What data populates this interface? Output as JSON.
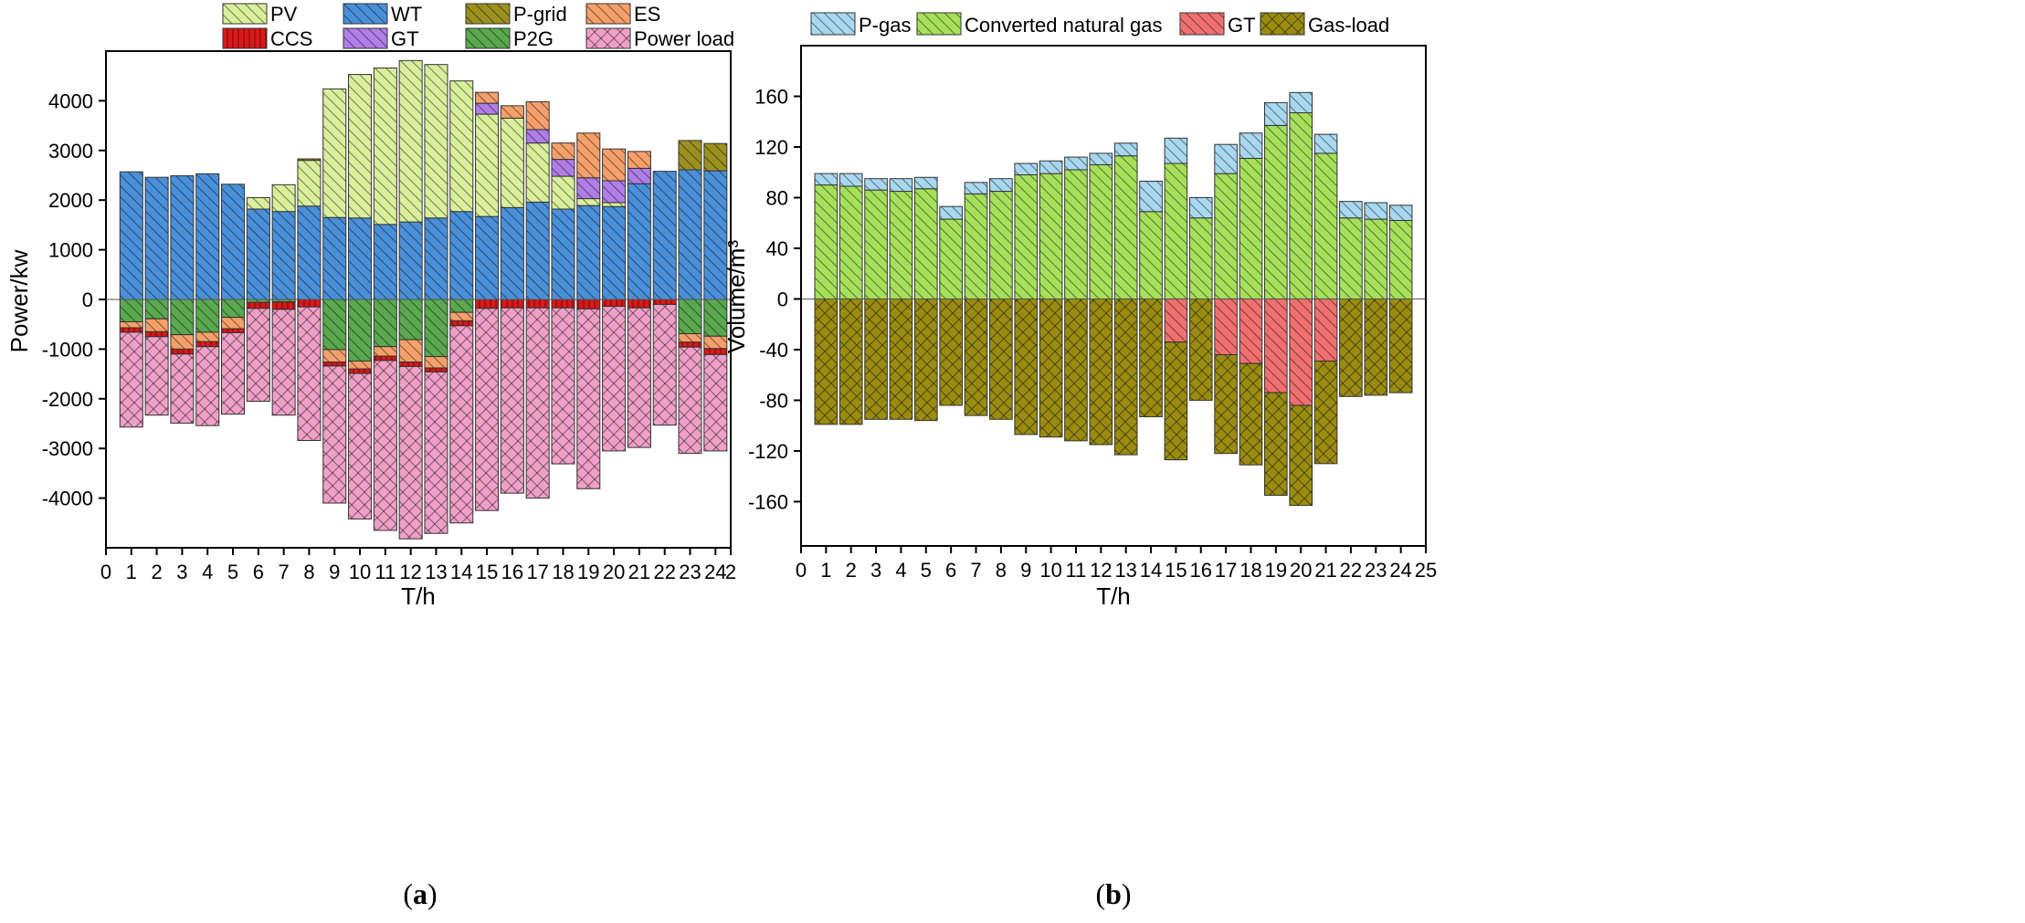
{
  "chart_data": [
    {
      "type": "bar",
      "stacked": true,
      "xlabel": "T/h",
      "ylabel": "Power/kw",
      "ylim": [
        -5000,
        5000
      ],
      "xlim": [
        0,
        24.6
      ],
      "xticks": [
        "0",
        "1",
        "2",
        "3",
        "4",
        "5",
        "6",
        "7",
        "8",
        "9",
        "10",
        "11",
        "12",
        "13",
        "14",
        "15",
        "16",
        "17",
        "18",
        "19",
        "20",
        "21",
        "22",
        "23",
        "24",
        "2"
      ],
      "yticks": [
        "-4000",
        "-3000",
        "-2000",
        "-1000",
        "0",
        "1000",
        "2000",
        "3000",
        "4000"
      ],
      "grid": false,
      "legend_placement": "top",
      "panel_label": "a",
      "categories": [
        1,
        2,
        3,
        4,
        5,
        6,
        7,
        8,
        9,
        10,
        11,
        12,
        13,
        14,
        15,
        16,
        17,
        18,
        19,
        20,
        21,
        22,
        23,
        24
      ],
      "positive_series": [
        {
          "name": "WT",
          "color": "#4a90d9",
          "values": [
            2570,
            2460,
            2490,
            2530,
            2320,
            1820,
            1770,
            1880,
            1650,
            1640,
            1510,
            1560,
            1640,
            1770,
            1670,
            1850,
            1960,
            1820,
            1890,
            1870,
            2330,
            2580,
            2610,
            2590
          ]
        },
        {
          "name": "PV",
          "color": "#d9ef9b",
          "values": [
            0,
            0,
            0,
            0,
            0,
            230,
            540,
            920,
            2590,
            2890,
            3150,
            3250,
            3090,
            2630,
            2060,
            1800,
            1190,
            660,
            140,
            80,
            0,
            0,
            0,
            0
          ]
        },
        {
          "name": "GT",
          "color": "#b07ee8",
          "values": [
            0,
            0,
            0,
            0,
            0,
            0,
            0,
            0,
            0,
            0,
            0,
            0,
            0,
            0,
            220,
            0,
            270,
            340,
            420,
            440,
            310,
            0,
            0,
            0
          ]
        },
        {
          "name": "ES",
          "color": "#f5a06a",
          "values": [
            0,
            0,
            0,
            0,
            0,
            0,
            0,
            0,
            0,
            0,
            0,
            0,
            0,
            0,
            220,
            250,
            560,
            330,
            900,
            640,
            340,
            0,
            0,
            0
          ]
        },
        {
          "name": "P-grid",
          "color": "#9c9020",
          "values": [
            0,
            0,
            0,
            0,
            0,
            0,
            0,
            30,
            0,
            0,
            0,
            0,
            0,
            0,
            0,
            0,
            0,
            0,
            0,
            0,
            0,
            0,
            590,
            550
          ]
        }
      ],
      "negative_series": [
        {
          "name": "P2G",
          "color": "#5aa84f",
          "values": [
            -450,
            -390,
            -710,
            -660,
            -360,
            -60,
            -50,
            0,
            -1010,
            -1240,
            -950,
            -810,
            -1150,
            -260,
            0,
            0,
            0,
            0,
            0,
            0,
            0,
            0,
            -690,
            -740
          ]
        },
        {
          "name": "ES",
          "color": "#f5a06a",
          "values": [
            -120,
            -260,
            -290,
            -190,
            -230,
            0,
            0,
            0,
            -250,
            -160,
            -190,
            -450,
            -230,
            -170,
            0,
            0,
            0,
            0,
            0,
            0,
            0,
            0,
            -170,
            -250
          ]
        },
        {
          "name": "CCS",
          "color": "#d91818",
          "values": [
            -90,
            -100,
            -100,
            -100,
            -80,
            -120,
            -150,
            -150,
            -80,
            -90,
            -90,
            -90,
            -80,
            -100,
            -180,
            -170,
            -170,
            -170,
            -190,
            -140,
            -170,
            -100,
            -100,
            -120
          ]
        },
        {
          "name": "Power load",
          "color": "#f0a0c8",
          "values": [
            -1910,
            -1580,
            -1390,
            -1590,
            -1640,
            -1870,
            -2130,
            -2690,
            -2760,
            -2930,
            -3420,
            -3470,
            -3250,
            -3970,
            -4070,
            -3730,
            -3830,
            -3140,
            -3620,
            -2910,
            -2810,
            -2430,
            -2140,
            -1940
          ]
        }
      ],
      "legend": [
        "PV",
        "WT",
        "P-grid",
        "ES",
        "CCS",
        "GT",
        "P2G",
        "Power load"
      ]
    },
    {
      "type": "bar",
      "stacked": true,
      "xlabel": "T/h",
      "ylabel": "Volume/m³",
      "ylim": [
        -195,
        200
      ],
      "xlim": [
        0,
        25
      ],
      "xticks": [
        "0",
        "1",
        "2",
        "3",
        "4",
        "5",
        "6",
        "7",
        "8",
        "9",
        "10",
        "11",
        "12",
        "13",
        "14",
        "15",
        "16",
        "17",
        "18",
        "19",
        "20",
        "21",
        "22",
        "23",
        "24",
        "25"
      ],
      "yticks": [
        "-160",
        "-120",
        "-80",
        "-40",
        "0",
        "40",
        "80",
        "120",
        "160"
      ],
      "grid": false,
      "legend_placement": "top",
      "panel_label": "b",
      "categories": [
        1,
        2,
        3,
        4,
        5,
        6,
        7,
        8,
        9,
        10,
        11,
        12,
        13,
        14,
        15,
        16,
        17,
        18,
        19,
        20,
        21,
        22,
        23,
        24
      ],
      "positive_series": [
        {
          "name": "Converted natural gas",
          "color": "#a6e05a",
          "values": [
            90,
            89,
            86,
            85,
            87,
            63,
            83,
            85,
            98,
            99,
            102,
            106,
            113,
            69,
            107,
            64,
            99,
            111,
            137,
            147,
            115,
            64,
            63,
            62
          ]
        },
        {
          "name": "P-gas",
          "color": "#a8d8f0",
          "values": [
            9,
            10,
            9,
            10,
            9,
            10,
            9,
            10,
            9,
            10,
            10,
            9,
            10,
            24,
            20,
            16,
            23,
            20,
            18,
            16,
            15,
            13,
            13,
            12
          ]
        }
      ],
      "negative_series": [
        {
          "name": "GT",
          "color": "#f07070",
          "values": [
            0,
            0,
            0,
            0,
            0,
            0,
            0,
            0,
            0,
            0,
            0,
            0,
            0,
            0,
            -34,
            0,
            -44,
            -51,
            -74,
            -84,
            -49,
            0,
            0,
            0
          ]
        },
        {
          "name": "Gas-load",
          "color": "#9a8c10",
          "values": [
            -99,
            -99,
            -95,
            -95,
            -96,
            -84,
            -92,
            -95,
            -107,
            -109,
            -112,
            -115,
            -123,
            -93,
            -93,
            -80,
            -78,
            -80,
            -81,
            -79,
            -81,
            -77,
            -76,
            -74
          ]
        }
      ],
      "legend": [
        "P-gas",
        "Converted natural gas",
        "GT",
        "Gas-load"
      ]
    }
  ]
}
